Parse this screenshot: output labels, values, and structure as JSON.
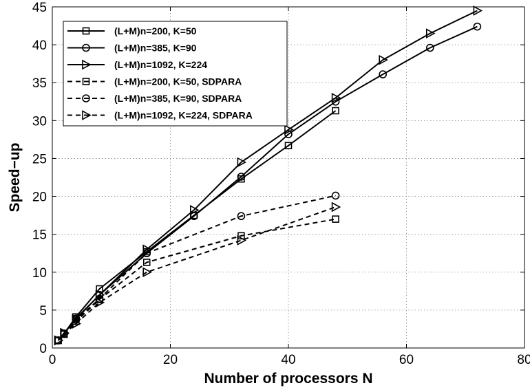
{
  "chart_data": {
    "type": "line",
    "title": "",
    "xlabel": "Number of processors N",
    "ylabel": "Speed−up",
    "xlim": [
      0,
      80
    ],
    "ylim": [
      0,
      45
    ],
    "xticks": [
      0,
      20,
      40,
      60,
      80
    ],
    "yticks": [
      0,
      5,
      10,
      15,
      20,
      25,
      30,
      35,
      40,
      45
    ],
    "grid": true,
    "legend_position": "top-left",
    "series": [
      {
        "name": "(L+M)n=200, K=50",
        "style": "solid",
        "marker": "square",
        "color": "#000000",
        "x": [
          1,
          2,
          4,
          8,
          16,
          24,
          32,
          40,
          48
        ],
        "y": [
          1,
          1.9,
          4.1,
          7.8,
          12.7,
          17.5,
          22.3,
          26.7,
          31.3
        ]
      },
      {
        "name": "(L+M)n=385, K=90",
        "style": "solid",
        "marker": "circle",
        "color": "#000000",
        "x": [
          1,
          2,
          4,
          8,
          16,
          24,
          32,
          40,
          48,
          56,
          64,
          72
        ],
        "y": [
          1,
          1.9,
          3.9,
          7.0,
          12.5,
          17.4,
          22.6,
          28.2,
          32.5,
          36.1,
          39.6,
          42.4
        ]
      },
      {
        "name": "(L+M)n=1092, K=224",
        "style": "solid",
        "marker": "triangle-right",
        "color": "#000000",
        "x": [
          1,
          2,
          4,
          8,
          16,
          24,
          32,
          40,
          48,
          56,
          64,
          72
        ],
        "y": [
          1,
          2.0,
          3.8,
          7.0,
          13.0,
          18.2,
          24.5,
          28.8,
          33.0,
          38.0,
          41.5,
          44.5
        ]
      },
      {
        "name": "(L+M)n=200, K=50, SDPARA",
        "style": "dashed",
        "marker": "square",
        "color": "#000000",
        "x": [
          1,
          2,
          4,
          8,
          16,
          32,
          48
        ],
        "y": [
          1,
          1.8,
          3.5,
          6.4,
          11.3,
          14.8,
          17.0
        ]
      },
      {
        "name": "(L+M)n=385, K=90, SDPARA",
        "style": "dashed",
        "marker": "circle",
        "color": "#000000",
        "x": [
          1,
          2,
          4,
          8,
          16,
          32,
          48
        ],
        "y": [
          1,
          1.9,
          3.7,
          6.5,
          12.5,
          17.4,
          20.1
        ]
      },
      {
        "name": "(L+M)n=1092, K=224, SDPARA",
        "style": "dashed",
        "marker": "triangle-right",
        "color": "#000000",
        "x": [
          1,
          2,
          4,
          8,
          16,
          32,
          48
        ],
        "y": [
          1,
          1.9,
          3.2,
          6.0,
          10.0,
          14.2,
          18.6
        ]
      }
    ]
  }
}
